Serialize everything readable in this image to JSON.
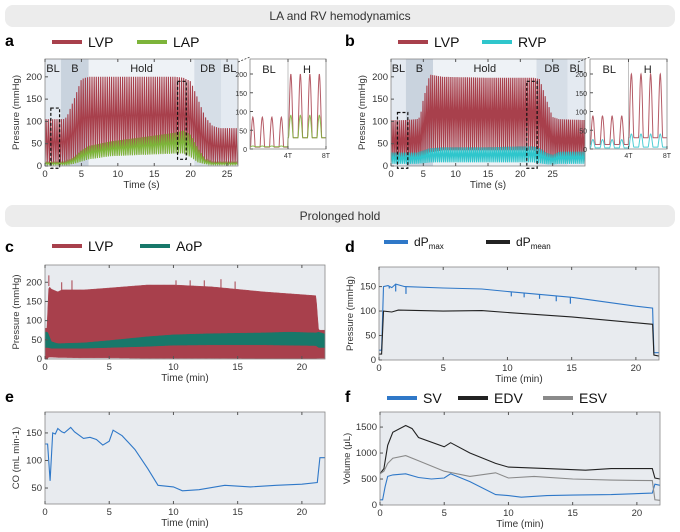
{
  "sections": {
    "top": "LA and RV hemodynamics",
    "bottom": "Prolonged hold"
  },
  "colors": {
    "LVP": "#a8404c",
    "LAP": "#7db43a",
    "RVP": "#2fc6cc",
    "AoP": "#18786a",
    "dPmax": "#2f78c8",
    "dPmean": "#222222",
    "SV": "#2f78c8",
    "EDV": "#222222",
    "ESV": "#8a8a8a",
    "plot_bg": "#e8ebef"
  },
  "chart_data": [
    {
      "id": "a",
      "panel": "a",
      "type": "line",
      "xlabel": "Time (s)",
      "ylabel": "Pressure (mmHg)",
      "xlim": [
        0,
        26.5
      ],
      "ylim": [
        0,
        240
      ],
      "xticks": [
        "0",
        "5",
        "10",
        "15",
        "20",
        "25"
      ],
      "xtick_values": [
        0,
        5,
        10,
        15,
        20,
        25
      ],
      "yticks": [
        "0",
        "50",
        "100",
        "150",
        "200"
      ],
      "ytick_values": [
        0,
        50,
        100,
        150,
        200
      ],
      "legend": [
        "LVP",
        "LAP"
      ],
      "phases": [
        {
          "label": "BL",
          "range": [
            0,
            2.2
          ],
          "color": "#e4eaf1"
        },
        {
          "label": "B",
          "range": [
            2.2,
            6
          ],
          "color": "#c9d3de"
        },
        {
          "label": "Hold",
          "range": [
            6,
            20.5
          ],
          "color": "#eef2f6"
        },
        {
          "label": "DB",
          "range": [
            20.5,
            24.2
          ],
          "color": "#d6dee7"
        },
        {
          "label": "BL",
          "range": [
            24.2,
            26.5
          ],
          "color": "#e4eaf1"
        }
      ],
      "highlight_boxes": [
        {
          "x": [
            0.8,
            2.0
          ],
          "y": [
            -5,
            130
          ]
        },
        {
          "x": [
            18.2,
            19.4
          ],
          "y": [
            15,
            190
          ]
        }
      ],
      "series": [
        {
          "name": "LVP",
          "kind": "pulse",
          "t": [
            0,
            2.5,
            3,
            4,
            5,
            6,
            9,
            18,
            19,
            20,
            21,
            22,
            23,
            24,
            26.5
          ],
          "max": [
            105,
            105,
            110,
            150,
            195,
            200,
            200,
            200,
            198,
            190,
            150,
            110,
            90,
            85,
            85
          ],
          "min": [
            3,
            3,
            3,
            5,
            15,
            20,
            25,
            30,
            30,
            25,
            10,
            5,
            3,
            3,
            3
          ]
        },
        {
          "name": "LAP",
          "kind": "pulse",
          "t": [
            0,
            2.5,
            3,
            4,
            5,
            6,
            9,
            18,
            19,
            20,
            21,
            22,
            23,
            24,
            26.5
          ],
          "max": [
            8,
            8,
            10,
            20,
            35,
            45,
            55,
            75,
            80,
            70,
            40,
            15,
            8,
            8,
            8
          ],
          "min": [
            3,
            3,
            3,
            5,
            10,
            15,
            22,
            28,
            28,
            20,
            8,
            4,
            3,
            3,
            3
          ]
        }
      ]
    },
    {
      "id": "a-inset",
      "type": "line",
      "xlim": [
        0,
        8
      ],
      "ylim": [
        0,
        240
      ],
      "xticks": [
        "4T",
        "8T"
      ],
      "xtick_values": [
        4,
        8
      ],
      "yticks": [
        "0",
        "50",
        "100",
        "150",
        "200"
      ],
      "ytick_values": [
        0,
        50,
        100,
        150,
        200
      ],
      "phase_labels": [
        "BL",
        "H"
      ],
      "series": [
        {
          "name": "LVP",
          "kind": "beats",
          "bl": [
            5,
            85
          ],
          "h": [
            30,
            200
          ]
        },
        {
          "name": "LAP",
          "kind": "beats",
          "bl": [
            6,
            8
          ],
          "h": [
            30,
            90
          ]
        }
      ]
    },
    {
      "id": "b",
      "panel": "b",
      "type": "line",
      "xlabel": "Time (s)",
      "ylabel": "Pressure (mmHg)",
      "xlim": [
        0,
        30
      ],
      "ylim": [
        0,
        240
      ],
      "xticks": [
        "0",
        "5",
        "10",
        "15",
        "20",
        "25"
      ],
      "xtick_values": [
        0,
        5,
        10,
        15,
        20,
        25
      ],
      "yticks": [
        "0",
        "50",
        "100",
        "150",
        "200"
      ],
      "ytick_values": [
        0,
        50,
        100,
        150,
        200
      ],
      "legend": [
        "LVP",
        "RVP"
      ],
      "phases": [
        {
          "label": "BL",
          "range": [
            0,
            2.3
          ],
          "color": "#e4eaf1"
        },
        {
          "label": "B",
          "range": [
            2.3,
            6.5
          ],
          "color": "#c9d3de"
        },
        {
          "label": "Hold",
          "range": [
            6.5,
            22.5
          ],
          "color": "#eef2f6"
        },
        {
          "label": "DB",
          "range": [
            22.5,
            27.3
          ],
          "color": "#d6dee7"
        },
        {
          "label": "BL",
          "range": [
            27.3,
            30
          ],
          "color": "#e4eaf1"
        }
      ],
      "highlight_boxes": [
        {
          "x": [
            1.0,
            2.6
          ],
          "y": [
            -5,
            120
          ]
        },
        {
          "x": [
            21.0,
            22.6
          ],
          "y": [
            -5,
            190
          ]
        }
      ],
      "series": [
        {
          "name": "LVP",
          "kind": "pulse",
          "t": [
            0,
            2,
            4,
            4.5,
            5,
            6,
            8,
            15,
            20,
            22,
            23,
            24,
            25,
            26,
            30
          ],
          "max": [
            103,
            103,
            105,
            110,
            150,
            205,
            200,
            198,
            198,
            198,
            195,
            150,
            110,
            105,
            103
          ],
          "min": [
            10,
            10,
            10,
            12,
            20,
            30,
            35,
            35,
            35,
            35,
            25,
            15,
            8,
            10,
            10
          ]
        },
        {
          "name": "RVP",
          "kind": "pulse",
          "t": [
            0,
            2,
            4,
            5,
            6,
            8,
            15,
            20,
            22,
            23,
            24,
            25,
            26,
            30
          ],
          "max": [
            30,
            30,
            30,
            35,
            40,
            42,
            42,
            44,
            44,
            40,
            30,
            25,
            32,
            32
          ],
          "min": [
            5,
            5,
            5,
            6,
            8,
            8,
            8,
            8,
            8,
            6,
            4,
            3,
            5,
            5
          ]
        }
      ]
    },
    {
      "id": "b-inset",
      "type": "line",
      "xlim": [
        0,
        8
      ],
      "ylim": [
        0,
        240
      ],
      "xticks": [
        "4T",
        "8T"
      ],
      "xtick_values": [
        4,
        8
      ],
      "yticks": [
        "0",
        "50",
        "100",
        "150",
        "200"
      ],
      "ytick_values": [
        0,
        50,
        100,
        150,
        200
      ],
      "phase_labels": [
        "BL",
        "H"
      ],
      "series": [
        {
          "name": "LVP",
          "kind": "beats",
          "bl": [
            12,
            88
          ],
          "h": [
            30,
            200
          ]
        },
        {
          "name": "RVP",
          "kind": "beats",
          "bl": [
            3,
            25
          ],
          "h": [
            5,
            40
          ]
        }
      ]
    },
    {
      "id": "c",
      "panel": "c",
      "type": "area",
      "xlabel": "Time (min)",
      "ylabel": "Pressure (mmHg)",
      "xlim": [
        0,
        21.8
      ],
      "ylim": [
        0,
        245
      ],
      "xticks": [
        "0",
        "5",
        "10",
        "15",
        "20"
      ],
      "xtick_values": [
        0,
        5,
        10,
        15,
        20
      ],
      "yticks": [
        "0",
        "50",
        "100",
        "150",
        "200"
      ],
      "ytick_values": [
        0,
        50,
        100,
        150,
        200
      ],
      "legend": [
        "LVP",
        "AoP"
      ],
      "series": [
        {
          "name": "LVP",
          "kind": "band",
          "t": [
            0,
            0.15,
            0.3,
            0.5,
            1,
            1.3,
            3,
            5,
            8,
            10,
            13,
            17,
            21.1,
            21.3,
            21.8
          ],
          "max": [
            80,
            80,
            190,
            182,
            175,
            180,
            180,
            185,
            193,
            193,
            188,
            175,
            165,
            75,
            75
          ],
          "min": [
            0,
            0,
            5,
            5,
            4,
            4,
            3,
            3,
            2,
            2,
            2,
            1,
            1,
            2,
            2
          ],
          "spikes": [
            [
              0.3,
              218
            ],
            [
              1.3,
              200
            ],
            [
              2.1,
              205
            ],
            [
              10.2,
              205
            ],
            [
              11.3,
              205
            ],
            [
              12.4,
              205
            ],
            [
              13.7,
              208
            ],
            [
              14.8,
              202
            ]
          ]
        },
        {
          "name": "AoP",
          "kind": "band",
          "t": [
            0,
            0.2,
            0.5,
            1,
            3,
            5,
            8,
            10,
            13,
            17,
            19,
            21.1,
            21.3,
            21.8
          ],
          "max": [
            70,
            70,
            45,
            40,
            42,
            48,
            58,
            63,
            66,
            68,
            70,
            68,
            70,
            65
          ],
          "min": [
            30,
            30,
            28,
            28,
            28,
            30,
            33,
            36,
            37,
            37,
            36,
            35,
            30,
            30
          ]
        }
      ]
    },
    {
      "id": "d",
      "panel": "d",
      "type": "line",
      "xlabel": "Time (min)",
      "ylabel": "Pressure (mmHg)",
      "xlim": [
        0,
        21.8
      ],
      "ylim": [
        0,
        190
      ],
      "xticks": [
        "0",
        "5",
        "10",
        "15",
        "20"
      ],
      "xtick_values": [
        0,
        5,
        10,
        15,
        20
      ],
      "yticks": [
        "0",
        "50",
        "100",
        "150"
      ],
      "ytick_values": [
        0,
        50,
        100,
        150
      ],
      "legend": [
        {
          "base": "dP",
          "sub": "max"
        },
        {
          "base": "dP",
          "sub": "mean"
        }
      ],
      "series": [
        {
          "name": "dPmax",
          "x": [
            0,
            0.2,
            0.35,
            0.7,
            1.0,
            1.3,
            2.0,
            5,
            8,
            10,
            15,
            20,
            21.3,
            21.4,
            21.8
          ],
          "y": [
            20,
            20,
            150,
            152,
            148,
            155,
            150,
            147,
            145,
            140,
            128,
            110,
            106,
            15,
            15
          ],
          "dips": [
            [
              0.8,
              146
            ],
            [
              1.3,
              140
            ],
            [
              2.1,
              135
            ],
            [
              10.3,
              130
            ],
            [
              11.3,
              128
            ],
            [
              12.5,
              125
            ],
            [
              13.8,
              120
            ],
            [
              14.9,
              115
            ]
          ]
        },
        {
          "name": "dPmean",
          "x": [
            0,
            0.2,
            0.35,
            1,
            1.5,
            5,
            8,
            10,
            15,
            21.3,
            21.4,
            21.8
          ],
          "y": [
            12,
            12,
            100,
            98,
            102,
            100,
            101,
            97,
            88,
            73,
            10,
            8
          ]
        }
      ]
    },
    {
      "id": "e",
      "panel": "e",
      "type": "line",
      "xlabel": "Time (min)",
      "ylabel": "CO (mL min-1)",
      "xlim": [
        0,
        21.8
      ],
      "ylim": [
        21,
        188
      ],
      "xticks": [
        "0",
        "5",
        "10",
        "15",
        "20"
      ],
      "xtick_values": [
        0,
        5,
        10,
        15,
        20
      ],
      "yticks": [
        "50",
        "100",
        "150"
      ],
      "ytick_values": [
        50,
        100,
        150
      ],
      "series": [
        {
          "name": "CO",
          "x": [
            0,
            0.2,
            0.4,
            0.6,
            0.8,
            1,
            1.3,
            1.5,
            2,
            2.3,
            3,
            3.5,
            4,
            4.5,
            5,
            5.3,
            6,
            7,
            8,
            8.8,
            10,
            10.7,
            12,
            14,
            16,
            18,
            20,
            21.2,
            21.4,
            21.8
          ],
          "y": [
            130,
            130,
            63,
            150,
            148,
            158,
            152,
            150,
            160,
            152,
            140,
            142,
            138,
            128,
            135,
            155,
            145,
            120,
            85,
            55,
            52,
            45,
            47,
            55,
            52,
            55,
            57,
            60,
            105,
            105
          ]
        }
      ]
    },
    {
      "id": "f",
      "panel": "f",
      "type": "line",
      "xlabel": "Time (min)",
      "ylabel": "Volume (μL)",
      "xlim": [
        0,
        21.8
      ],
      "ylim": [
        0,
        1790
      ],
      "xticks": [
        "0",
        "5",
        "10",
        "15",
        "20"
      ],
      "xtick_values": [
        0,
        5,
        10,
        15,
        20
      ],
      "yticks": [
        "0",
        "500",
        "1000",
        "1500"
      ],
      "ytick_values": [
        0,
        500,
        1000,
        1500
      ],
      "legend": [
        "SV",
        "EDV",
        "ESV"
      ],
      "series": [
        {
          "name": "SV",
          "x": [
            0,
            0.2,
            0.4,
            0.6,
            1,
            2,
            3,
            4,
            5,
            5.5,
            7,
            9,
            10,
            11,
            13,
            15,
            18,
            21.2,
            21.4,
            21.8
          ],
          "y": [
            100,
            100,
            350,
            550,
            580,
            600,
            530,
            500,
            520,
            600,
            450,
            200,
            180,
            150,
            180,
            190,
            200,
            230,
            400,
            380
          ]
        },
        {
          "name": "EDV",
          "x": [
            0,
            0.3,
            0.6,
            1,
            2,
            2.5,
            3,
            5,
            5.5,
            7,
            9,
            10,
            13,
            16,
            18,
            21.2,
            21.4,
            21.8
          ],
          "y": [
            600,
            700,
            1150,
            1400,
            1530,
            1470,
            1300,
            1120,
            1200,
            1000,
            800,
            730,
            700,
            670,
            700,
            700,
            520,
            500
          ]
        },
        {
          "name": "ESV",
          "x": [
            0,
            0.3,
            0.6,
            1,
            2,
            3,
            5,
            7,
            9,
            10,
            12,
            15,
            18,
            21.2,
            21.4,
            21.8
          ],
          "y": [
            600,
            650,
            800,
            900,
            950,
            850,
            650,
            550,
            620,
            520,
            550,
            500,
            480,
            470,
            100,
            90
          ]
        }
      ]
    }
  ]
}
